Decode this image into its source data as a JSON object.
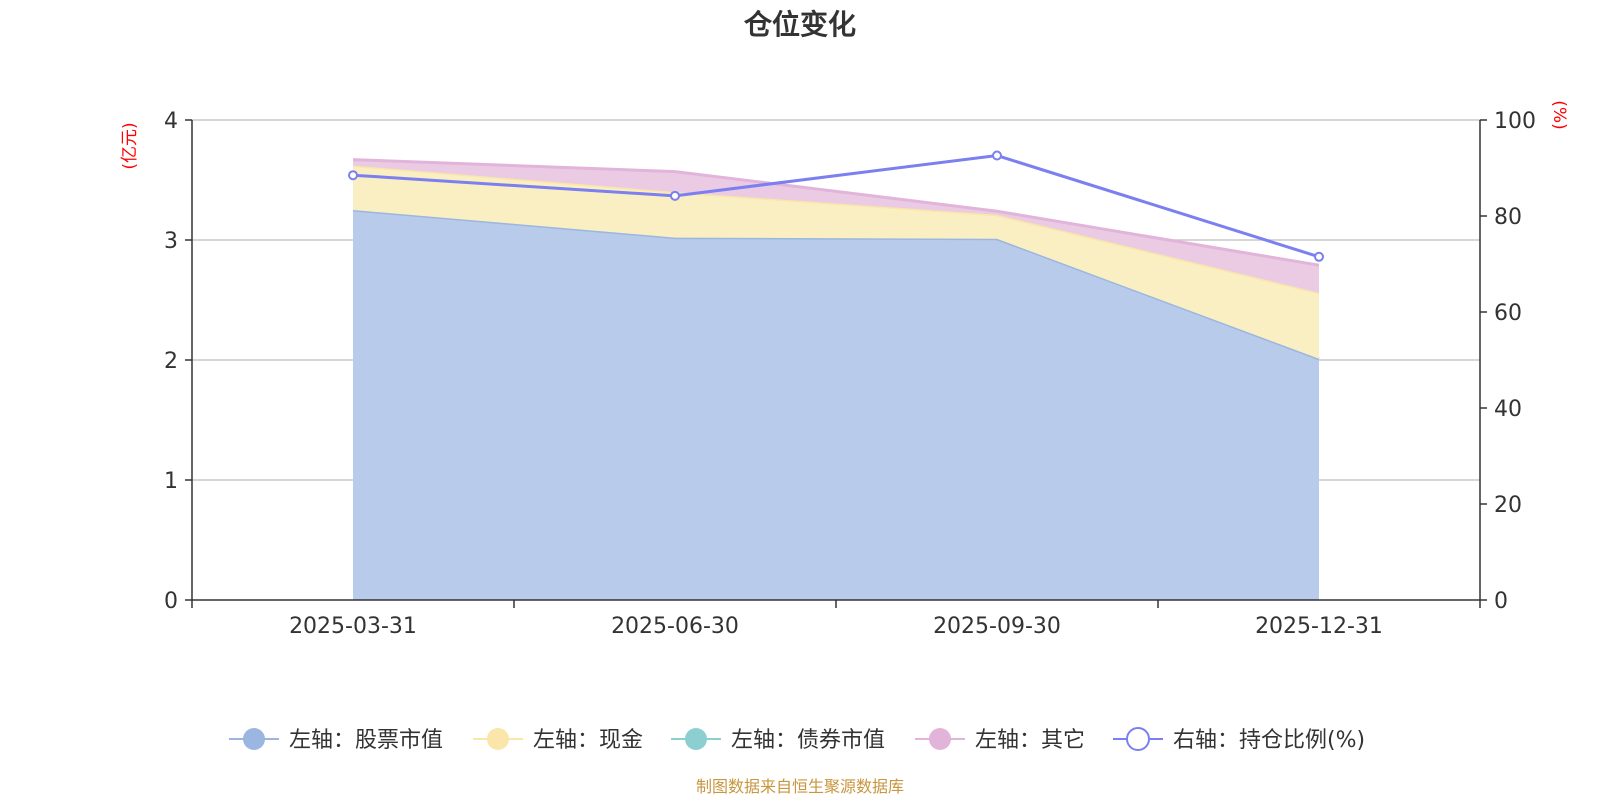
{
  "chart_data": {
    "type": "area",
    "title": "仓位变化",
    "categories": [
      "2025-03-31",
      "2025-06-30",
      "2025-09-30",
      "2025-12-31"
    ],
    "left_axis": {
      "unit": "(亿元)",
      "ylim": [
        0,
        4
      ],
      "ticks": [
        0,
        1,
        2,
        3,
        4
      ]
    },
    "right_axis": {
      "unit": "(%)",
      "ylim": [
        0,
        100
      ],
      "ticks": [
        0,
        20,
        40,
        60,
        80,
        100
      ]
    },
    "series": [
      {
        "name": "左轴：股票市值",
        "axis": "left",
        "kind": "stacked-area",
        "color": "#9bb6e0",
        "fill": "#b8cbea",
        "values": [
          3.25,
          3.02,
          3.01,
          2.01
        ]
      },
      {
        "name": "左轴：现金",
        "axis": "left",
        "kind": "stacked-area",
        "color": "#f9e6a8",
        "fill": "#faefc2",
        "values": [
          0.37,
          0.38,
          0.2,
          0.55
        ]
      },
      {
        "name": "左轴：债券市值",
        "axis": "left",
        "kind": "stacked-area",
        "color": "#8ccfd0",
        "fill": "#b3e0e0",
        "values": [
          0,
          0,
          0,
          0
        ]
      },
      {
        "name": "左轴：其它",
        "axis": "left",
        "kind": "stacked-area",
        "color": "#e2b4da",
        "fill": "#ebcbe4",
        "values": [
          0.05,
          0.17,
          0.03,
          0.23
        ]
      },
      {
        "name": "右轴：持仓比例(%)",
        "axis": "right",
        "kind": "line",
        "color": "#7b7ff0",
        "values": [
          88.5,
          84.2,
          92.6,
          71.5
        ]
      }
    ],
    "legend_position": "bottom",
    "grid": true
  },
  "footer": {
    "source": "制图数据来自恒生聚源数据库"
  }
}
